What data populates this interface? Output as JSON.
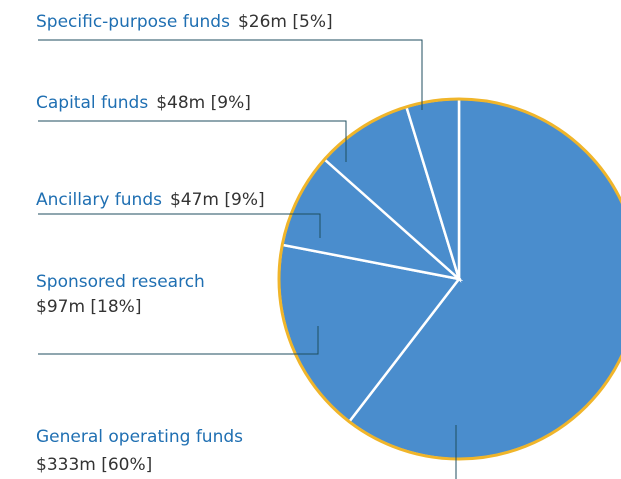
{
  "chart_data": {
    "type": "pie",
    "categories": [
      "General operating funds",
      "Sponsored research",
      "Ancillary funds",
      "Capital funds",
      "Specific-purpose funds"
    ],
    "values": [
      333,
      97,
      47,
      48,
      26
    ],
    "value_labels": [
      "$333m [60%]",
      "$97m [18%]",
      "$47m [9%]",
      "$48m [9%]",
      "$26m [5%]"
    ],
    "color": "#4a8dcd"
  }
}
